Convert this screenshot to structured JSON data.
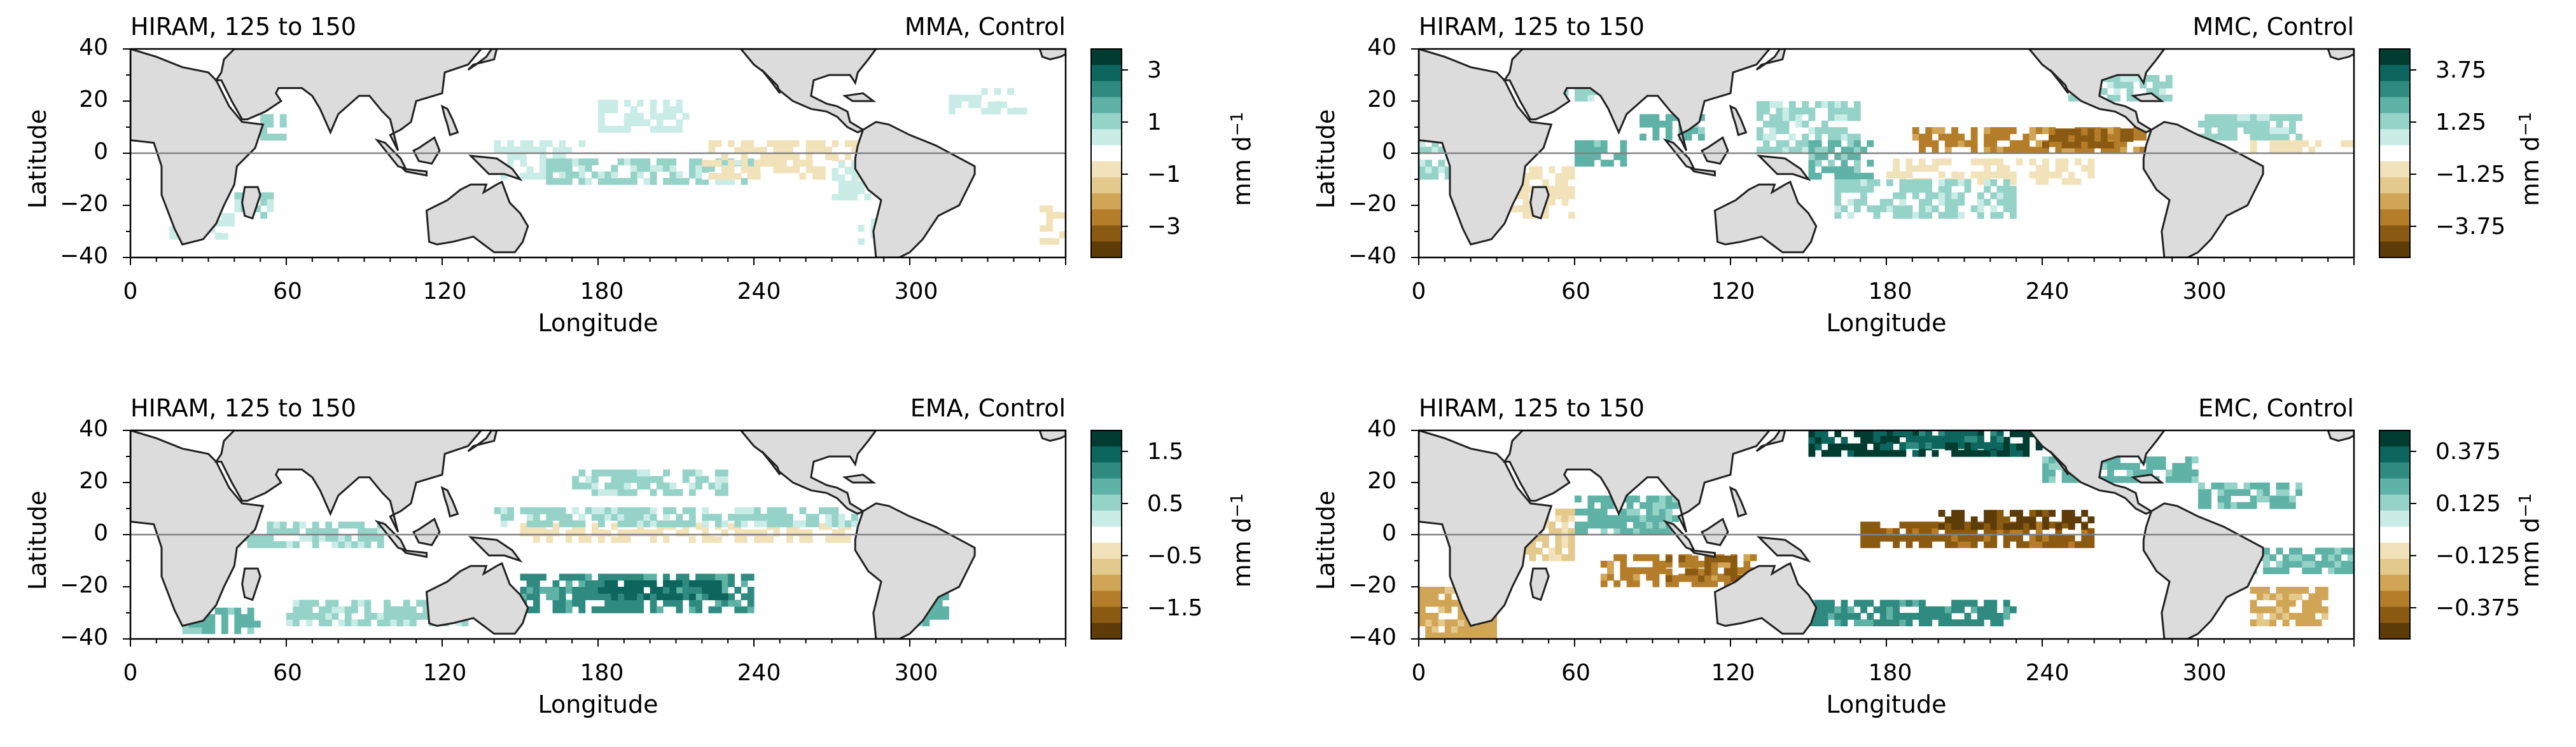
{
  "colors": {
    "land": "#dcdcdc",
    "coast": "#222222",
    "equator": "#808080",
    "brbg": [
      "#5e3c08",
      "#8b5a12",
      "#b47d2a",
      "#d1a556",
      "#e4c98c",
      "#f2e2b9",
      "#ffffff",
      "#c9ece7",
      "#95d2c8",
      "#5fb2a6",
      "#2f8a80",
      "#0c665e",
      "#003c30"
    ]
  },
  "axes": {
    "xlabel": "Longitude",
    "ylabel": "Latitude",
    "xticks": [
      "0",
      "60",
      "120",
      "180",
      "240",
      "300"
    ],
    "yticks": [
      "40",
      "20",
      "0",
      "−20",
      "−40"
    ],
    "cbar_unit": "mm d",
    "cbar_unit_sup": "−1"
  },
  "panels": [
    {
      "id": "mma",
      "left_title": "HIRAM, 125 to 150",
      "right_title": "MMA, Control",
      "cbar_ticks": [
        "3",
        "1",
        "−1",
        "−3"
      ]
    },
    {
      "id": "mmc",
      "left_title": "HIRAM, 125 to 150",
      "right_title": "MMC, Control",
      "cbar_ticks": [
        "3.75",
        "1.25",
        "−1.25",
        "−3.75"
      ]
    },
    {
      "id": "ema",
      "left_title": "HIRAM, 125 to 150",
      "right_title": "EMA, Control",
      "cbar_ticks": [
        "1.5",
        "0.5",
        "−0.5",
        "−1.5"
      ]
    },
    {
      "id": "emc",
      "left_title": "HIRAM, 125 to 150",
      "right_title": "EMC, Control",
      "cbar_ticks": [
        "0.375",
        "0.125",
        "−0.125",
        "−0.375"
      ]
    }
  ]
}
